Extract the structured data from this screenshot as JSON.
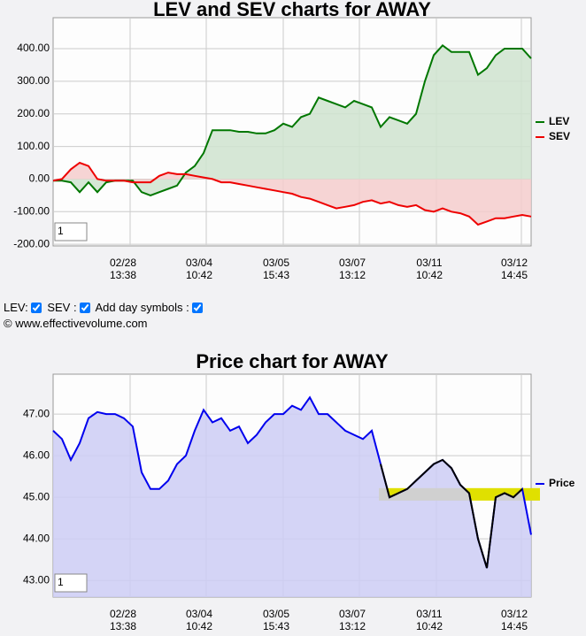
{
  "chart_data": [
    {
      "type": "line",
      "title": "LEV and SEV charts for AWAY",
      "input_value": "1",
      "x": [
        0,
        1,
        2,
        3,
        4,
        5,
        6,
        7,
        8,
        9,
        10,
        11,
        12,
        13,
        14,
        15,
        16,
        17,
        18,
        19,
        20,
        21,
        22,
        23,
        24,
        25,
        26,
        27,
        28,
        29,
        30,
        31,
        32,
        33,
        34,
        35,
        36,
        37,
        38,
        39,
        40,
        41,
        42,
        43,
        44,
        45,
        46,
        47,
        48,
        49,
        50,
        51,
        52,
        53,
        54
      ],
      "series": [
        {
          "name": "LEV",
          "color": "#007700",
          "fill": "#cfe3cf",
          "values": [
            -5,
            -5,
            -10,
            -40,
            -10,
            -40,
            -10,
            -5,
            -5,
            -5,
            -40,
            -50,
            -40,
            -30,
            -20,
            20,
            40,
            80,
            150,
            150,
            150,
            145,
            145,
            140,
            140,
            150,
            170,
            160,
            190,
            200,
            250,
            240,
            230,
            220,
            240,
            230,
            220,
            160,
            190,
            180,
            170,
            200,
            300,
            380,
            410,
            390,
            390,
            390,
            320,
            340,
            380,
            400,
            400,
            400,
            370
          ]
        },
        {
          "name": "SEV",
          "color": "#ee0000",
          "fill": "#f5cccc",
          "values": [
            -5,
            0,
            30,
            50,
            40,
            0,
            -5,
            -5,
            -5,
            -10,
            -10,
            -10,
            10,
            20,
            15,
            15,
            10,
            5,
            0,
            -10,
            -10,
            -15,
            -20,
            -25,
            -30,
            -35,
            -40,
            -45,
            -55,
            -60,
            -70,
            -80,
            -90,
            -85,
            -80,
            -70,
            -65,
            -75,
            -70,
            -80,
            -85,
            -80,
            -95,
            -100,
            -90,
            -100,
            -105,
            -115,
            -140,
            -130,
            -120,
            -120,
            -115,
            -110,
            -115
          ]
        }
      ],
      "xlim": [
        0,
        54
      ],
      "xticks": [
        {
          "value": 8.7,
          "label": [
            "02/28",
            "13:38"
          ]
        },
        {
          "value": 17.3,
          "label": [
            "03/04",
            "10:42"
          ]
        },
        {
          "value": 26,
          "label": [
            "03/05",
            "15:43"
          ]
        },
        {
          "value": 34.6,
          "label": [
            "03/07",
            "13:12"
          ]
        },
        {
          "value": 43.3,
          "label": [
            "03/11",
            "10:42"
          ]
        },
        {
          "value": 52.9,
          "label": [
            "03/12",
            "14:45"
          ]
        }
      ],
      "ylim": [
        -205,
        495
      ],
      "yticks": [
        {
          "value": -200,
          "label": "-200.00"
        },
        {
          "value": -100,
          "label": "-100.00"
        },
        {
          "value": 0,
          "label": "0.00"
        },
        {
          "value": 100,
          "label": "100.00"
        },
        {
          "value": 200,
          "label": "200.00"
        },
        {
          "value": 300,
          "label": "300.00"
        },
        {
          "value": 400,
          "label": "400.00"
        }
      ],
      "grid": true,
      "legend": "right"
    },
    {
      "type": "line",
      "title": "Price chart for AWAY",
      "input_value": "1",
      "x": [
        0,
        1,
        2,
        3,
        4,
        5,
        6,
        7,
        8,
        9,
        10,
        11,
        12,
        13,
        14,
        15,
        16,
        17,
        18,
        19,
        20,
        21,
        22,
        23,
        24,
        25,
        26,
        27,
        28,
        29,
        30,
        31,
        32,
        33,
        34,
        35,
        36,
        37,
        38,
        39,
        40,
        41,
        42,
        43,
        44,
        45,
        46,
        47,
        48,
        49,
        50,
        51,
        52,
        53,
        54
      ],
      "series": [
        {
          "name": "Price",
          "color": "#0000ee",
          "fill": "#ccccf5",
          "values": [
            46.6,
            46.4,
            45.9,
            46.3,
            46.9,
            47.05,
            47.0,
            47.0,
            46.9,
            46.7,
            45.6,
            45.2,
            45.2,
            45.4,
            45.8,
            46.0,
            46.6,
            47.1,
            46.8,
            46.9,
            46.6,
            46.7,
            46.3,
            46.5,
            46.8,
            47.0,
            47.0,
            47.2,
            47.1,
            47.4,
            47.0,
            47.0,
            46.8,
            46.6,
            46.5,
            46.4,
            46.6,
            45.8,
            45.0,
            45.1,
            45.2,
            45.4,
            45.6,
            45.8,
            45.9,
            45.7,
            45.3,
            45.1,
            44.0,
            43.3,
            45.0,
            45.1,
            45.0,
            45.2,
            44.1
          ]
        }
      ],
      "band": {
        "x": [
          36.8,
          55
        ],
        "y": [
          44.92,
          45.22
        ],
        "color": "#e0e000"
      },
      "segment": {
        "x": [
          37,
          53
        ],
        "color": "#000000"
      },
      "xlim": [
        0,
        54
      ],
      "xticks": [
        {
          "value": 8.7,
          "label": [
            "02/28",
            "13:38"
          ]
        },
        {
          "value": 17.3,
          "label": [
            "03/04",
            "10:42"
          ]
        },
        {
          "value": 26,
          "label": [
            "03/05",
            "15:43"
          ]
        },
        {
          "value": 34.6,
          "label": [
            "03/07",
            "13:12"
          ]
        },
        {
          "value": 43.3,
          "label": [
            "03/11",
            "10:42"
          ]
        },
        {
          "value": 52.9,
          "label": [
            "03/12",
            "14:45"
          ]
        }
      ],
      "ylim": [
        42.6,
        47.96
      ],
      "yticks": [
        {
          "value": 43,
          "label": "43.00"
        },
        {
          "value": 44,
          "label": "44.00"
        },
        {
          "value": 45,
          "label": "45.00"
        },
        {
          "value": 46,
          "label": "46.00"
        },
        {
          "value": 47,
          "label": "47.00"
        }
      ],
      "grid": true,
      "legend": "right"
    }
  ],
  "controls": {
    "lev": "LEV:",
    "sev": "SEV :",
    "days": "Add day symbols :"
  },
  "copyright": "© www.effectivevolume.com"
}
